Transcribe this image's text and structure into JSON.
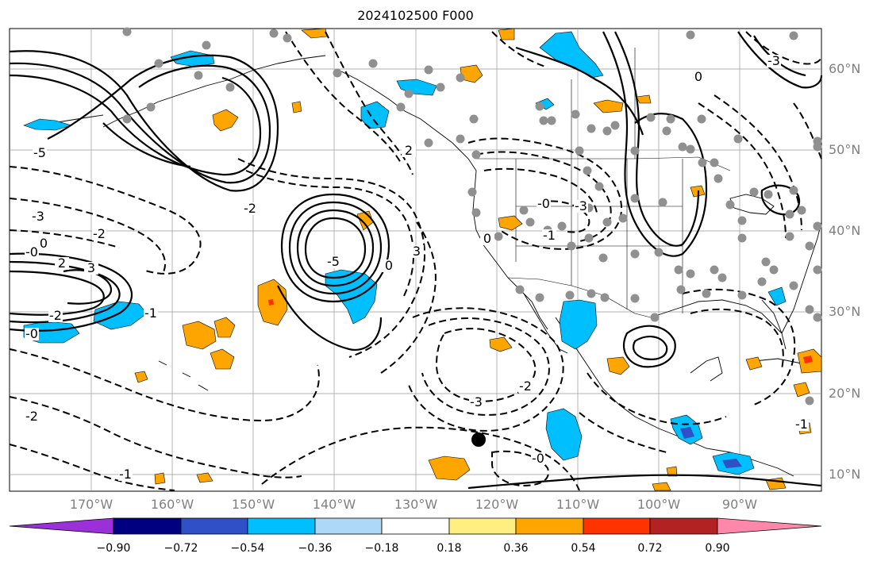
{
  "title": "2024102500 F000",
  "lat_labels": [
    "60°N",
    "50°N",
    "40°N",
    "30°N",
    "20°N",
    "10°N"
  ],
  "lon_labels": [
    "170°W",
    "160°W",
    "150°W",
    "140°W",
    "130°W",
    "120°W",
    "110°W",
    "100°W",
    "90°W"
  ],
  "contour_labels": [
    {
      "text": "-5"
    },
    {
      "text": "-3"
    },
    {
      "text": "-2"
    },
    {
      "text": "0"
    },
    {
      "text": "-0"
    },
    {
      "text": "2"
    },
    {
      "text": "3"
    },
    {
      "text": "-2"
    },
    {
      "text": "-0"
    },
    {
      "text": "-1"
    },
    {
      "text": "-2"
    },
    {
      "text": "-1"
    },
    {
      "text": "-0"
    },
    {
      "text": "-2"
    },
    {
      "text": "-3"
    },
    {
      "text": "-2"
    },
    {
      "text": "2"
    },
    {
      "text": "3"
    },
    {
      "text": "0"
    },
    {
      "text": "-3"
    },
    {
      "text": "0"
    },
    {
      "text": "-1"
    },
    {
      "text": "-0"
    },
    {
      "text": "0"
    },
    {
      "text": "-1"
    },
    {
      "text": "-3"
    },
    {
      "text": "-5"
    }
  ],
  "colorbar": {
    "labels": [
      "−0.90",
      "−0.72",
      "−0.54",
      "−0.36",
      "−0.18",
      "0.18",
      "0.36",
      "0.54",
      "0.72",
      "0.90"
    ],
    "colors": [
      "#9b30d9",
      "#000080",
      "#3050c8",
      "#00bfff",
      "#add8f7",
      "#ffffff",
      "#ffee80",
      "#ffa500",
      "#ff3300",
      "#b22222",
      "#ff88aa"
    ]
  },
  "colors": {
    "contour": "#000000",
    "station": "#909090",
    "neg_fill": "#00bfff",
    "pos_fill": "#ffa500",
    "grid": "#999999"
  }
}
